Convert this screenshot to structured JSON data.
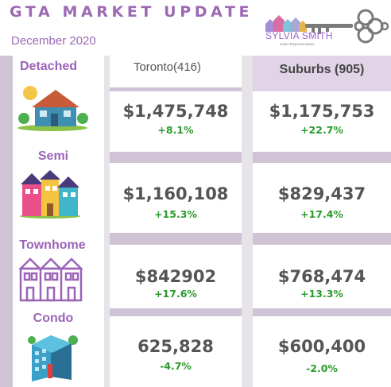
{
  "header": {
    "title": "GTA MARKET UPDATE",
    "date": "December 2020",
    "logo": {
      "name": "SYLVIA SMITH",
      "subtitle": "Sales Representative"
    }
  },
  "columns": {
    "toronto": "Toronto(416)",
    "suburbs": "Suburbs (905)"
  },
  "categories": [
    {
      "label": "Detached",
      "icon": "detached-house-icon",
      "toronto_price": "$1,475,748",
      "toronto_change": "+8.1%",
      "suburbs_price": "$1,175,753",
      "suburbs_change": "+22.7%"
    },
    {
      "label": "Semi",
      "icon": "semi-houses-icon",
      "toronto_price": "$1,160,108",
      "toronto_change": "+15.3%",
      "suburbs_price": "$829,437",
      "suburbs_change": "+17.4%"
    },
    {
      "label": "Townhome",
      "icon": "townhome-icon",
      "toronto_price": "$842902",
      "toronto_change": "+17.6%",
      "suburbs_price": "$768,474",
      "suburbs_change": "+13.3%"
    },
    {
      "label": "Condo",
      "icon": "condo-building-icon",
      "toronto_price": "625,828",
      "toronto_change": "-4.7%",
      "suburbs_price": "$600,400",
      "suburbs_change": "-2.0%"
    }
  ],
  "colors": {
    "accent": "#9d69b5",
    "band": "#d0c3d6",
    "positive": "#2c9a2c",
    "price": "#555555"
  }
}
